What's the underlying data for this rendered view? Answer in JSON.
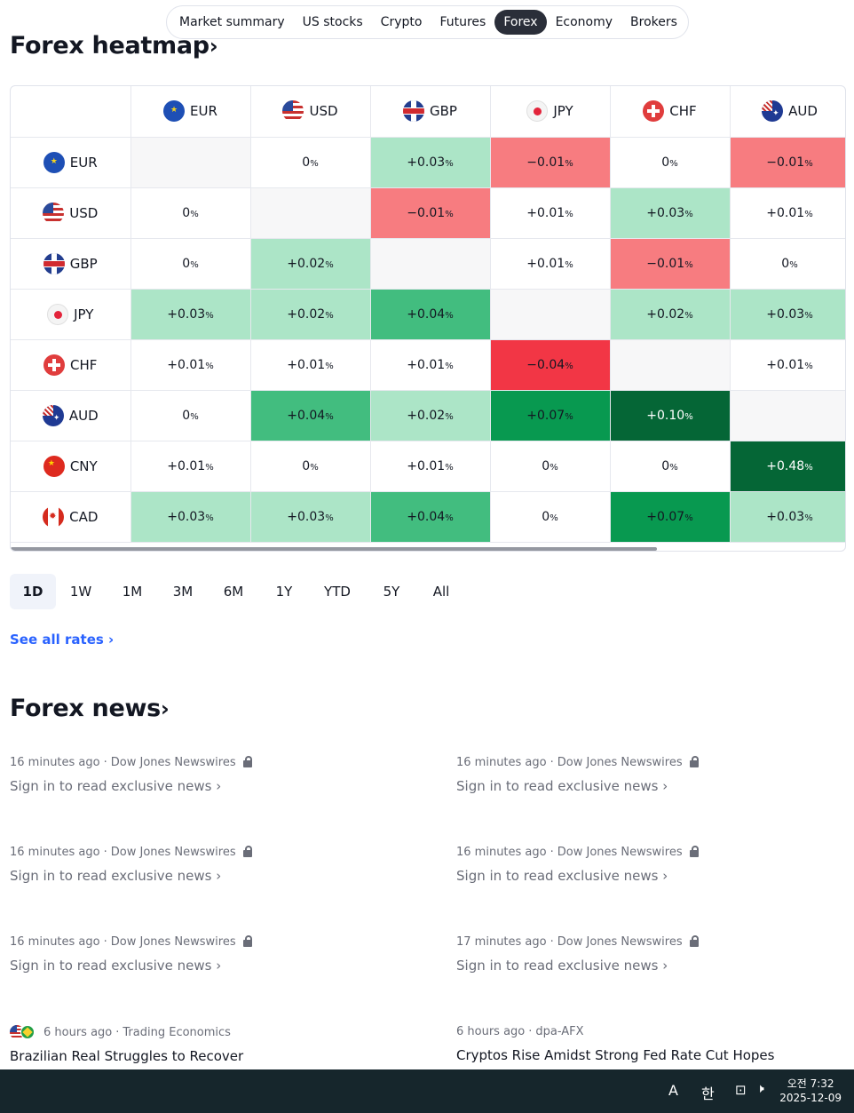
{
  "nav": {
    "tabs": [
      {
        "label": "Market summary",
        "active": false
      },
      {
        "label": "US stocks",
        "active": false
      },
      {
        "label": "Crypto",
        "active": false
      },
      {
        "label": "Futures",
        "active": false
      },
      {
        "label": "Forex",
        "active": true
      },
      {
        "label": "Economy",
        "active": false
      },
      {
        "label": "Brokers",
        "active": false
      }
    ]
  },
  "heatmap": {
    "title": "Forex heatmap",
    "chevron": "›",
    "pct_sign": "%",
    "columns": [
      "EUR",
      "USD",
      "GBP",
      "JPY",
      "CHF",
      "AUD"
    ],
    "rows": [
      {
        "ccy": "EUR",
        "cells": [
          "",
          "0",
          "+0.03",
          "−0.01",
          "0",
          "−0.01"
        ]
      },
      {
        "ccy": "USD",
        "cells": [
          "0",
          "",
          "−0.01",
          "+0.01",
          "+0.03",
          "+0.01"
        ]
      },
      {
        "ccy": "GBP",
        "cells": [
          "0",
          "+0.02",
          "",
          "+0.01",
          "−0.01",
          "0"
        ]
      },
      {
        "ccy": "JPY",
        "cells": [
          "+0.03",
          "+0.02",
          "+0.04",
          "",
          "+0.02",
          "+0.03"
        ]
      },
      {
        "ccy": "CHF",
        "cells": [
          "+0.01",
          "+0.01",
          "+0.01",
          "−0.04",
          "",
          "+0.01"
        ]
      },
      {
        "ccy": "AUD",
        "cells": [
          "0",
          "+0.04",
          "+0.02",
          "+0.07",
          "+0.10",
          ""
        ]
      },
      {
        "ccy": "CNY",
        "cells": [
          "+0.01",
          "0",
          "+0.01",
          "0",
          "0",
          "+0.48"
        ]
      },
      {
        "ccy": "CAD",
        "cells": [
          "+0.03",
          "+0.03",
          "+0.04",
          "0",
          "+0.07",
          "+0.03"
        ]
      }
    ],
    "colors": {
      "empty": "#f7f7f8",
      "neutral": "#ffffff",
      "green_1": "#ace5c7",
      "green_2": "#42bd7f",
      "green_3": "#089950",
      "green_4": "#056636",
      "red_1": "#f77c80",
      "red_2": "#f23645"
    }
  },
  "periods": {
    "items": [
      {
        "label": "1D",
        "active": true
      },
      {
        "label": "1W",
        "active": false
      },
      {
        "label": "1M",
        "active": false
      },
      {
        "label": "3M",
        "active": false
      },
      {
        "label": "6M",
        "active": false
      },
      {
        "label": "1Y",
        "active": false
      },
      {
        "label": "YTD",
        "active": false
      },
      {
        "label": "5Y",
        "active": false
      },
      {
        "label": "All",
        "active": false
      }
    ]
  },
  "see_all": {
    "label": "See all rates ›"
  },
  "news": {
    "title": "Forex news",
    "chevron": "›",
    "items": [
      {
        "time": "16 minutes ago",
        "source": "Dow Jones Newswires",
        "locked": true,
        "headline": "Sign in to read exclusive news ›"
      },
      {
        "time": "16 minutes ago",
        "source": "Dow Jones Newswires",
        "locked": true,
        "headline": "Sign in to read exclusive news ›"
      },
      {
        "time": "16 minutes ago",
        "source": "Dow Jones Newswires",
        "locked": true,
        "headline": "Sign in to read exclusive news ›"
      },
      {
        "time": "16 minutes ago",
        "source": "Dow Jones Newswires",
        "locked": true,
        "headline": "Sign in to read exclusive news ›"
      },
      {
        "time": "16 minutes ago",
        "source": "Dow Jones Newswires",
        "locked": true,
        "headline": "Sign in to read exclusive news ›"
      },
      {
        "time": "17 minutes ago",
        "source": "Dow Jones Newswires",
        "locked": true,
        "headline": "Sign in to read exclusive news ›"
      },
      {
        "time": "6 hours ago",
        "source": "Trading Economics",
        "locked": false,
        "headline": "Brazilian Real Struggles to Recover",
        "flags": [
          "usd",
          "brl"
        ]
      },
      {
        "time": "6 hours ago",
        "source": "dpa-AFX",
        "locked": false,
        "headline": "Cryptos Rise Amidst Strong Fed Rate Cut Hopes"
      }
    ],
    "separator": " · "
  },
  "taskbar": {
    "ime_latin": "A",
    "ime_korean": "한",
    "clock_time": "오전 7:32",
    "clock_date": "2025-12-09"
  }
}
